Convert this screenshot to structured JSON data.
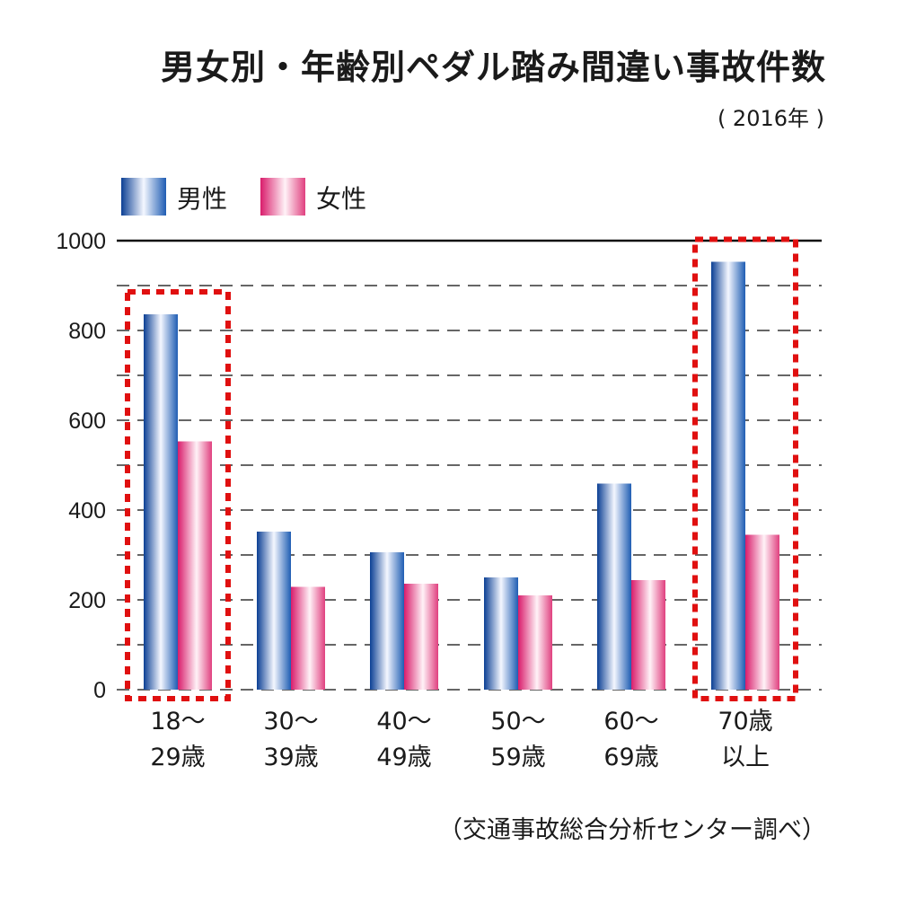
{
  "title": "男女別・年齢別ペダル踏み間違い事故件数",
  "subtitle": "( 2016年 )",
  "source": "（交通事故総合分析センター調べ）",
  "chart_data": {
    "type": "bar",
    "categories": [
      [
        "18～",
        "29歳"
      ],
      [
        "30～",
        "39歳"
      ],
      [
        "40～",
        "49歳"
      ],
      [
        "50～",
        "59歳"
      ],
      [
        "60～",
        "69歳"
      ],
      [
        "70歳",
        "以上"
      ]
    ],
    "series": [
      {
        "name": "男性",
        "values": [
          836,
          352,
          306,
          250,
          459,
          953
        ],
        "color": "#1f5db3"
      },
      {
        "name": "女性",
        "values": [
          553,
          229,
          236,
          210,
          244,
          345
        ],
        "color": "#e0407f"
      }
    ],
    "ylim": [
      0,
      1000
    ],
    "yticks": [
      0,
      200,
      400,
      600,
      800,
      1000
    ],
    "grid": "dashed",
    "legend_placement": "top-left",
    "highlighted_categories": [
      0,
      5
    ],
    "highlight_color": "#e01010"
  }
}
